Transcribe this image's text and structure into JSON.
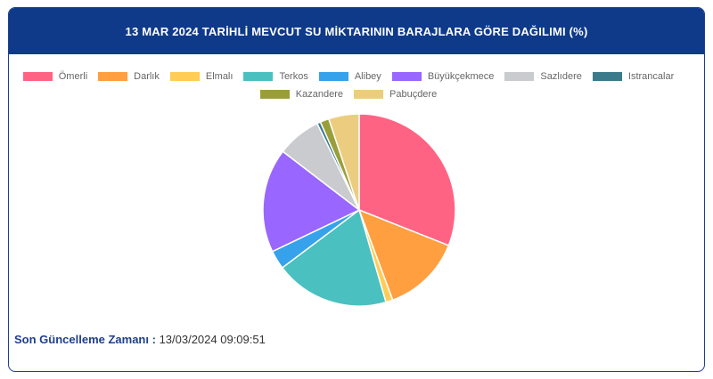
{
  "header": {
    "title": "13 MAR 2024 TARİHLİ MEVCUT SU MİKTARININ BARAJLARA GÖRE DAĞILIMI (%)"
  },
  "footer": {
    "label": "Son Güncelleme Zamanı :",
    "value": "13/03/2024 09:09:51"
  },
  "chart_data": {
    "type": "pie",
    "title": "13 MAR 2024 TARİHLİ MEVCUT SU MİKTARININ BARAJLARA GÖRE DAĞILIMI (%)",
    "legend_position": "top",
    "categories": [
      "Ömerli",
      "Darlık",
      "Elmalı",
      "Terkos",
      "Alibey",
      "Büyükçekmece",
      "Sazlıdere",
      "Istrancalar",
      "Kazandere",
      "Pabuçdere"
    ],
    "values": [
      31.5,
      13.5,
      1.2,
      19.5,
      3.2,
      17.8,
      7.5,
      0.6,
      1.5,
      5.2
    ],
    "colors": [
      "#ff6384",
      "#ff9f40",
      "#ffcd56",
      "#4bc0c0",
      "#36a2eb",
      "#9966ff",
      "#c9cbcf",
      "#3b7a8a",
      "#9a9e3a",
      "#eccd80"
    ]
  }
}
